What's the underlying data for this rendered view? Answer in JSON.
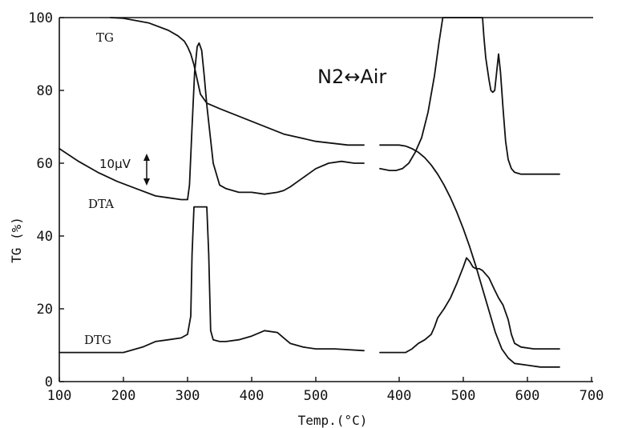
{
  "chart_data": {
    "type": "line",
    "xlabel": "Temp.(°C)",
    "ylabel": "TG (%)",
    "ylim": [
      0,
      100
    ],
    "yticks": [
      "0",
      "20",
      "40",
      "60",
      "80",
      "100"
    ],
    "grid": false,
    "left_panel": {
      "atmosphere": "N2",
      "xlim": [
        100,
        590
      ],
      "xticks": [
        "100",
        "200",
        "300",
        "400",
        "500"
      ],
      "series": [
        {
          "name": "TG",
          "x": [
            180,
            200,
            240,
            270,
            285,
            295,
            300,
            305,
            310,
            315,
            320,
            330,
            350,
            400,
            450,
            500,
            550,
            575
          ],
          "y": [
            100,
            99.8,
            98.5,
            96.5,
            95,
            93.5,
            92,
            90,
            87,
            83,
            79,
            76.5,
            75,
            71.5,
            68,
            66,
            65,
            65
          ]
        },
        {
          "name": "DTA",
          "x": [
            100,
            130,
            160,
            190,
            220,
            250,
            270,
            290,
            300,
            303,
            307,
            311,
            315,
            318,
            322,
            326,
            330,
            335,
            340,
            350,
            360,
            380,
            400,
            420,
            440,
            450,
            460,
            480,
            500,
            520,
            540,
            560,
            575
          ],
          "y": [
            64,
            60.5,
            57.5,
            55,
            53,
            51,
            50.5,
            50,
            50,
            54,
            70,
            85,
            92,
            93,
            91,
            84,
            76,
            68,
            60,
            54,
            53,
            52,
            52,
            51.5,
            52,
            52.5,
            53.5,
            56,
            58.5,
            60,
            60.5,
            60,
            60
          ]
        },
        {
          "name": "DTG",
          "x": [
            100,
            150,
            200,
            230,
            250,
            270,
            290,
            300,
            305,
            307,
            310,
            315,
            320,
            325,
            327,
            330,
            333,
            336,
            340,
            350,
            360,
            380,
            400,
            420,
            440,
            450,
            460,
            480,
            500,
            530,
            575
          ],
          "y": [
            8,
            8,
            8,
            9.5,
            11,
            11.5,
            12,
            13,
            18,
            35,
            48,
            48,
            48,
            48,
            48,
            48,
            35,
            14,
            11.5,
            11,
            11,
            11.5,
            12.5,
            14,
            13.5,
            12,
            10.5,
            9.5,
            9,
            9,
            8.5
          ]
        }
      ]
    },
    "right_panel": {
      "atmosphere": "Air",
      "xlim": [
        360,
        700
      ],
      "xticks": [
        "400",
        "500",
        "600",
        "700"
      ],
      "series": [
        {
          "name": "TG",
          "x": [
            370,
            390,
            400,
            410,
            420,
            430,
            440,
            450,
            460,
            470,
            480,
            490,
            500,
            510,
            520,
            530,
            540,
            550,
            560,
            570,
            580,
            600,
            620,
            640,
            650
          ],
          "y": [
            65,
            65,
            65,
            64.7,
            64,
            63,
            61.5,
            59.5,
            57,
            54,
            50.5,
            46.5,
            42,
            37,
            31.5,
            25.5,
            19.5,
            13.5,
            9,
            6.5,
            5,
            4.5,
            4,
            4,
            4
          ]
        },
        {
          "name": "DTA",
          "x": [
            370,
            385,
            395,
            405,
            415,
            425,
            435,
            445,
            455,
            462,
            468,
            530,
            532,
            535,
            540,
            543,
            546,
            549,
            552,
            555,
            558,
            562,
            566,
            570,
            575,
            580,
            590,
            610,
            630,
            650
          ],
          "y": [
            58.5,
            58,
            58,
            58.5,
            60,
            63,
            67,
            74,
            84,
            93,
            100,
            100,
            95,
            89,
            83,
            80,
            79.5,
            80,
            85,
            90,
            85,
            75,
            66,
            61,
            58.5,
            57.5,
            57,
            57,
            57,
            57
          ]
        },
        {
          "name": "DTG",
          "x": [
            370,
            390,
            410,
            420,
            430,
            440,
            450,
            455,
            460,
            470,
            480,
            490,
            500,
            505,
            510,
            515,
            520,
            525,
            530,
            540,
            548,
            555,
            562,
            570,
            575,
            580,
            590,
            610,
            630,
            650
          ],
          "y": [
            8,
            8,
            8,
            9,
            10.5,
            11.5,
            13,
            15,
            17.5,
            20,
            23,
            27,
            31.5,
            34,
            33,
            31.5,
            31,
            31,
            30.5,
            28.5,
            25.5,
            23,
            21,
            17,
            13,
            10.5,
            9.5,
            9,
            9,
            9
          ]
        }
      ]
    },
    "annotations": {
      "atmosphere_change": "N2↔Air",
      "dta_scale": "10μV"
    }
  }
}
